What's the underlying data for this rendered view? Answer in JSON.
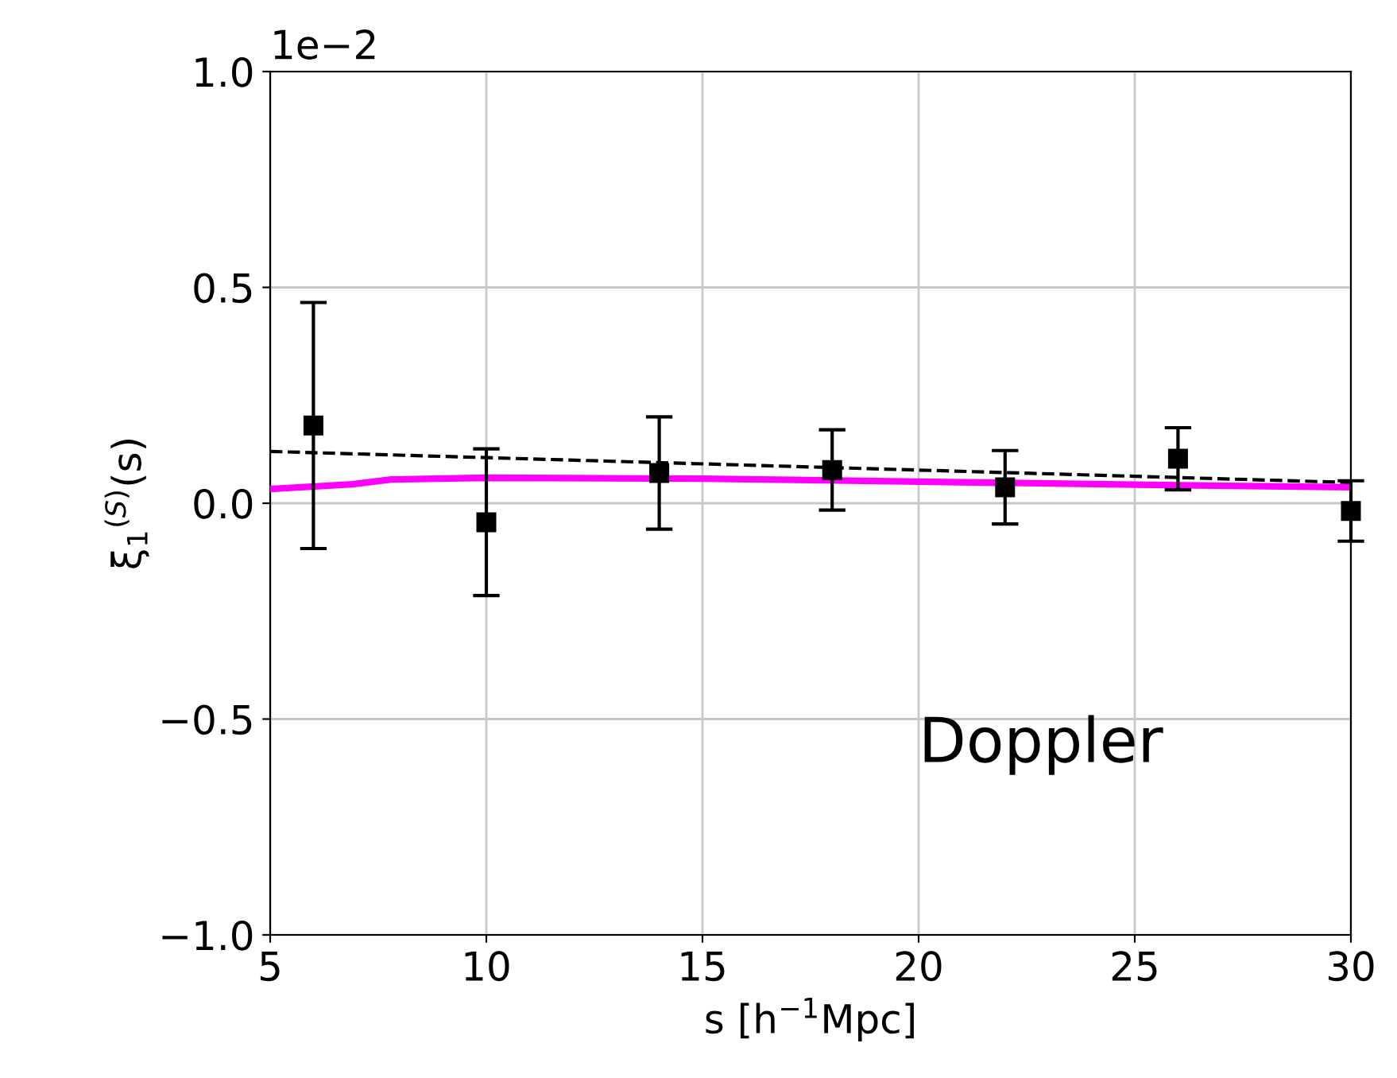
{
  "chart_data": {
    "type": "scatter",
    "xlabel": "s [h$^{−1}$Mpc]",
    "ylabel": "ξ$_{1}$$^{(S)}$(s)",
    "xlim": [
      5,
      30
    ],
    "xticks": [
      5,
      10,
      15,
      20,
      25,
      30
    ],
    "ylim": [
      -1.0,
      1.0
    ],
    "yticks": [
      {
        "value": -1.0,
        "label": "−1.0"
      },
      {
        "value": -0.5,
        "label": "−0.5"
      },
      {
        "value": 0.0,
        "label": "0.0"
      },
      0.5,
      {
        "value": 1.0,
        "label": "1.0"
      }
    ],
    "grid": true,
    "legend": false,
    "annotations": [
      "1e−2",
      "Doppler"
    ],
    "series": [
      {
        "color": "#000000",
        "marker": "square",
        "x": [
          6,
          10,
          14,
          18,
          22,
          26,
          30
        ],
        "values": [
          0.18,
          -0.044,
          0.07,
          0.077,
          0.037,
          0.103,
          -0.018
        ],
        "errors": [
          0.285,
          0.17,
          0.13,
          0.093,
          0.085,
          0.072,
          0.07
        ]
      },
      {
        "type": "line",
        "color": "#000000",
        "line_style": "dashed",
        "x": [
          5,
          30
        ],
        "values": [
          0.12,
          0.048
        ]
      },
      {
        "type": "line",
        "color": "#ff00ff",
        "line_style": "solid",
        "x": [
          5,
          6.9,
          7.8,
          10,
          15,
          20,
          25,
          30
        ],
        "values": [
          0.033,
          0.044,
          0.055,
          0.059,
          0.057,
          0.05,
          0.043,
          0.037
        ]
      }
    ]
  }
}
